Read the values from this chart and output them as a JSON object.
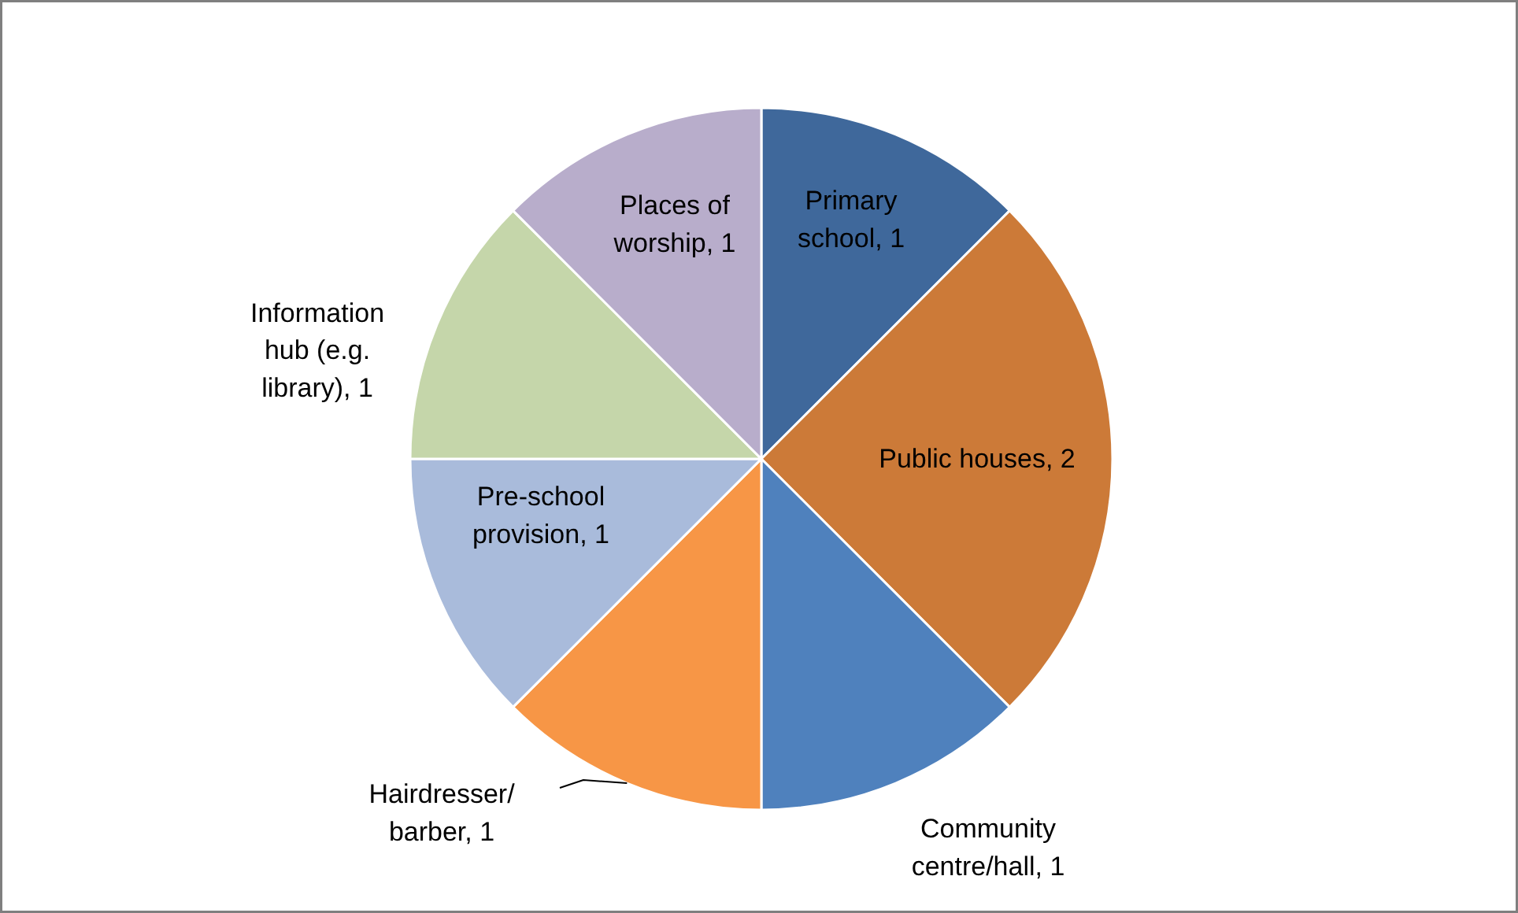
{
  "chart_data": {
    "type": "pie",
    "categories": [
      "Primary school, 1",
      "Public houses, 2",
      "Community centre/hall, 1",
      "Hairdresser/ barber, 1",
      "Pre-school provision, 1",
      "Information hub (e.g. library), 1",
      "Places of worship, 1"
    ],
    "values": [
      1,
      2,
      1,
      1,
      1,
      1,
      1
    ],
    "colors": [
      "#3f689b",
      "#cc7a38",
      "#4f81bd",
      "#f79646",
      "#a9bbdb",
      "#c5d6aa",
      "#b8adcb"
    ]
  }
}
